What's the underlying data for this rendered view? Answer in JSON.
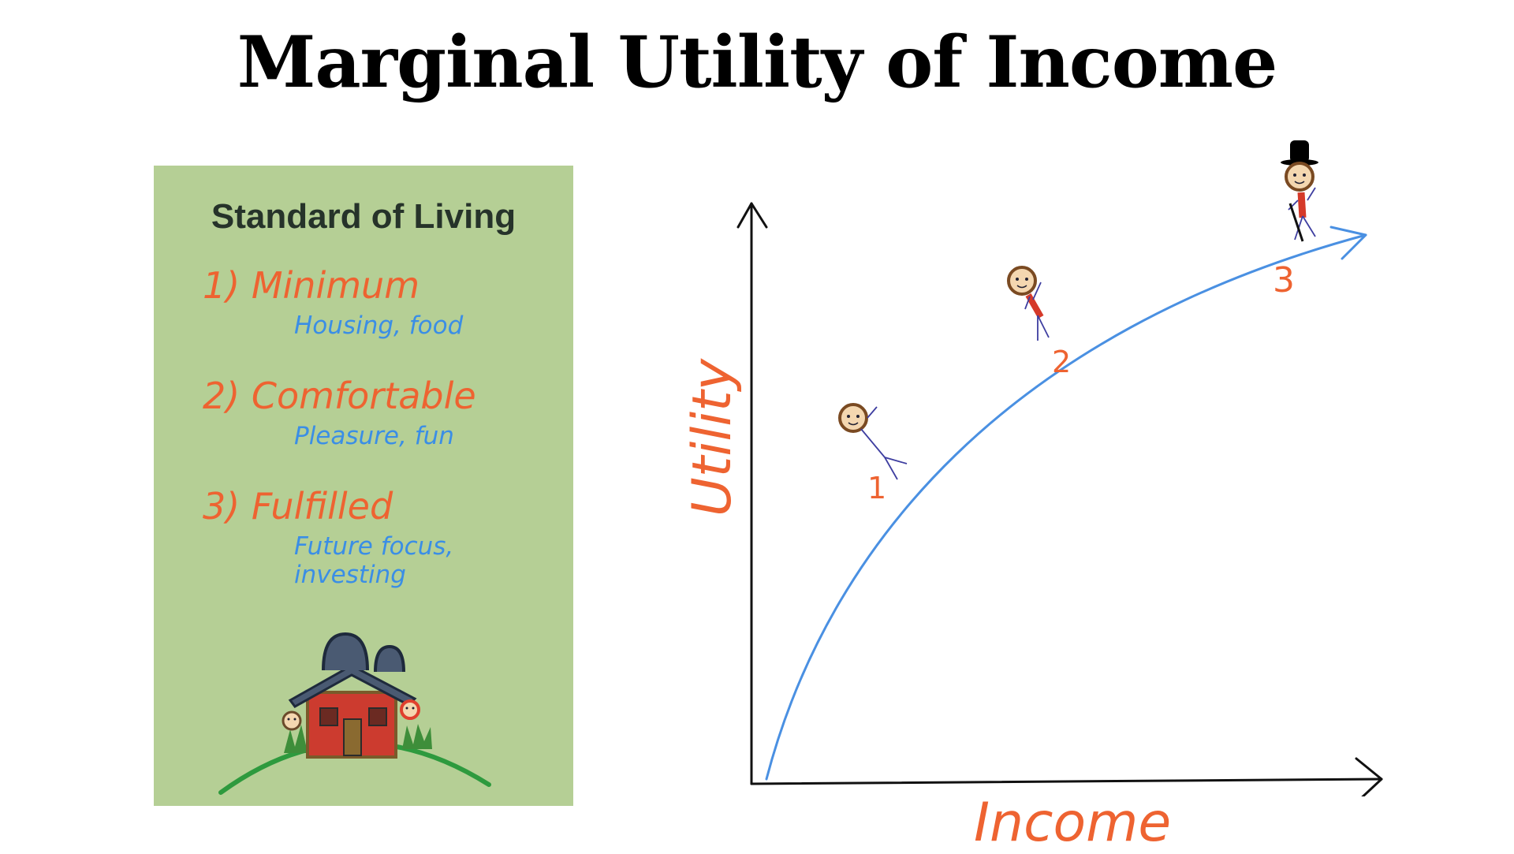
{
  "title": "Marginal Utility of Income",
  "card": {
    "title": "Standard of Living",
    "levels": [
      {
        "title": "1) Minimum",
        "desc": "Housing, food"
      },
      {
        "title": "2) Comfortable",
        "desc": "Pleasure, fun"
      },
      {
        "title": "3) Fulfilled",
        "desc": "Future focus, investing"
      }
    ]
  },
  "graph": {
    "x_label": "Income",
    "y_label": "Utility",
    "points": [
      "1",
      "2",
      "3"
    ]
  },
  "colors": {
    "card_bg": "#b5cf95",
    "accent_orange": "#ee6331",
    "accent_blue": "#3a8ee6",
    "curve": "#4a90e2"
  }
}
